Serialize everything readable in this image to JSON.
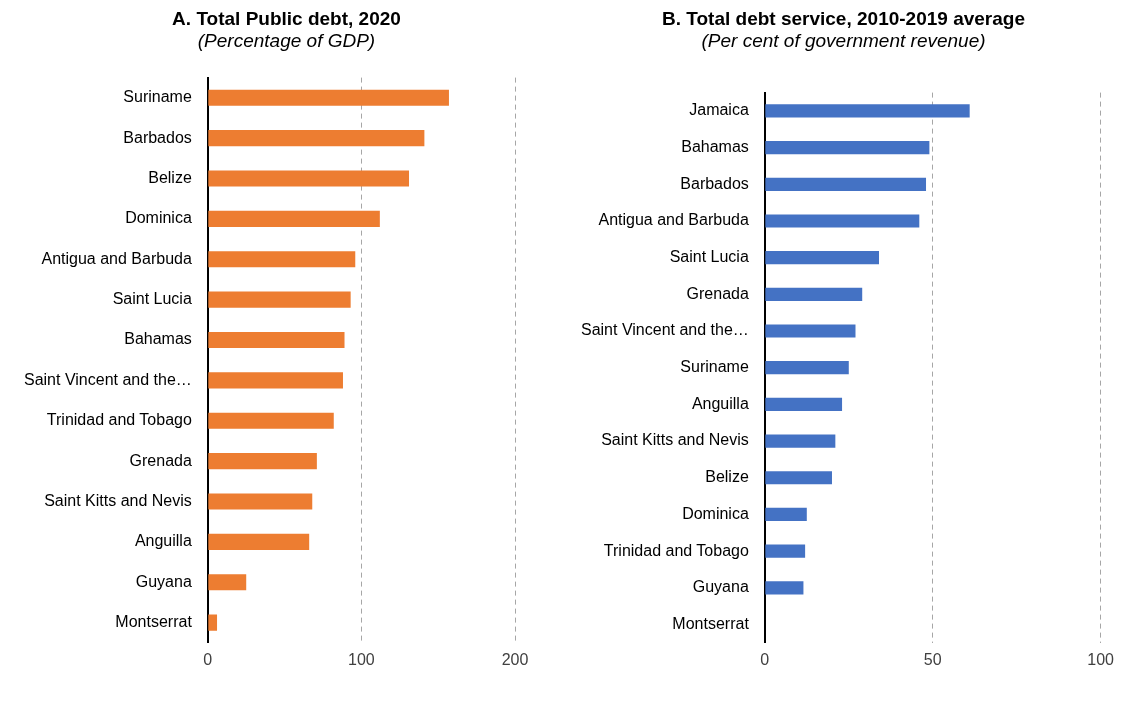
{
  "chart_data": [
    {
      "type": "bar",
      "orientation": "horizontal",
      "title": "A. Total Public debt, 2020",
      "subtitle": "(Percentage of GDP)",
      "categories": [
        "Suriname",
        "Barbados",
        "Belize",
        "Dominica",
        "Antigua and Barbuda",
        "Saint Lucia",
        "Bahamas",
        "Saint Vincent and the…",
        "Trinidad and Tobago",
        "Grenada",
        "Saint Kitts and Nevis",
        "Anguilla",
        "Guyana",
        "Montserrat"
      ],
      "values": [
        157,
        141,
        131,
        112,
        96,
        93,
        89,
        88,
        82,
        71,
        68,
        66,
        25,
        6
      ],
      "color": "#ed7d31",
      "xlim": [
        0,
        200
      ],
      "xticks": [
        0,
        100,
        200
      ],
      "grid": "x"
    },
    {
      "type": "bar",
      "orientation": "horizontal",
      "title": "B. Total debt service, 2010-2019 average",
      "subtitle": "(Per cent of government revenue)",
      "categories": [
        "Jamaica",
        "Bahamas",
        "Barbados",
        "Antigua and Barbuda",
        "Saint Lucia",
        "Grenada",
        "Saint Vincent and the…",
        "Suriname",
        "Anguilla",
        "Saint Kitts and Nevis",
        "Belize",
        "Dominica",
        "Trinidad and Tobago",
        "Guyana",
        "Montserrat"
      ],
      "values": [
        61,
        49,
        48,
        46,
        34,
        29,
        27,
        25,
        23,
        21,
        20,
        12.5,
        12,
        11.5,
        null
      ],
      "color": "#4472c4",
      "xlim": [
        0,
        100
      ],
      "xticks": [
        0,
        50,
        100
      ],
      "grid": "x"
    }
  ]
}
